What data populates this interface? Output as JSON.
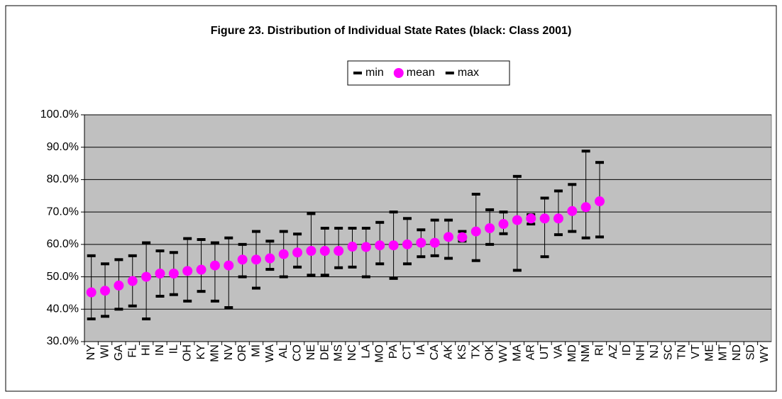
{
  "chart_data": {
    "type": "range",
    "title": "Figure 23. Distribution of Individual State Rates (black: Class 2001)",
    "categories": [
      "NY",
      "WI",
      "GA",
      "FL",
      "HI",
      "IN",
      "IL",
      "OH",
      "KY",
      "MN",
      "NV",
      "OR",
      "MI",
      "WA",
      "AL",
      "CO",
      "NE",
      "DE",
      "MS",
      "NC",
      "LA",
      "MO",
      "PA",
      "CT",
      "IA",
      "CA",
      "AK",
      "KS",
      "TX",
      "OK",
      "WV",
      "MA",
      "AR",
      "UT",
      "VA",
      "MD",
      "NM",
      "RI",
      "AZ",
      "ID",
      "NH",
      "NJ",
      "SC",
      "TN",
      "VT",
      "ME",
      "MT",
      "ND",
      "SD",
      "WY"
    ],
    "series": [
      {
        "name": "min",
        "color": "#000000",
        "values": [
          37,
          37.8,
          40,
          41,
          37,
          44,
          44.5,
          42.5,
          45.5,
          42.5,
          40.5,
          50,
          46.5,
          52.3,
          50,
          53,
          50.5,
          50.5,
          52.8,
          53,
          50,
          54,
          49.5,
          54,
          56.2,
          56.5,
          55.7,
          61,
          55,
          60,
          63.3,
          52,
          66.3,
          56.2,
          63,
          64,
          62,
          62.3,
          null,
          null,
          null,
          null,
          null,
          null,
          null,
          null,
          null,
          null,
          null,
          null
        ]
      },
      {
        "name": "mean",
        "color": "#ff00ff",
        "values": [
          45.2,
          45.7,
          47.3,
          48.7,
          50,
          51,
          51,
          51.8,
          52.2,
          53.5,
          53.5,
          55.3,
          55.3,
          55.7,
          57,
          57.5,
          58,
          58,
          58,
          59.3,
          59.2,
          59.7,
          59.7,
          60,
          60.5,
          60.5,
          62.3,
          62.2,
          64,
          65,
          66.3,
          67.5,
          68,
          68,
          68,
          70.3,
          71.5,
          73.3,
          null,
          null,
          null,
          null,
          null,
          null,
          null,
          null,
          null,
          null,
          null,
          null
        ]
      },
      {
        "name": "max",
        "color": "#000000",
        "values": [
          56.5,
          54,
          55.3,
          56.5,
          60.5,
          58,
          57.5,
          61.8,
          61.5,
          60.5,
          62,
          60,
          64,
          61,
          64,
          63.2,
          69.5,
          65,
          65,
          65,
          65,
          66.8,
          70,
          68,
          64.5,
          67.5,
          67.5,
          64,
          75.5,
          70.7,
          70,
          81,
          69.2,
          74.3,
          76.5,
          78.5,
          88.8,
          85.3,
          null,
          null,
          null,
          null,
          null,
          null,
          null,
          null,
          null,
          null,
          null,
          null
        ]
      }
    ],
    "ylim": [
      30,
      100
    ],
    "yticks": [
      {
        "value": 30,
        "label": "30.0%"
      },
      {
        "value": 40,
        "label": "40.0%"
      },
      {
        "value": 50,
        "label": "50.0%"
      },
      {
        "value": 60,
        "label": "60.0%"
      },
      {
        "value": 70,
        "label": "70.0%"
      },
      {
        "value": 80,
        "label": "80.0%"
      },
      {
        "value": 90,
        "label": "90.0%"
      },
      {
        "value": 100,
        "label": "100.0%"
      }
    ],
    "grid": true,
    "plot_background": "#c0c0c0"
  }
}
